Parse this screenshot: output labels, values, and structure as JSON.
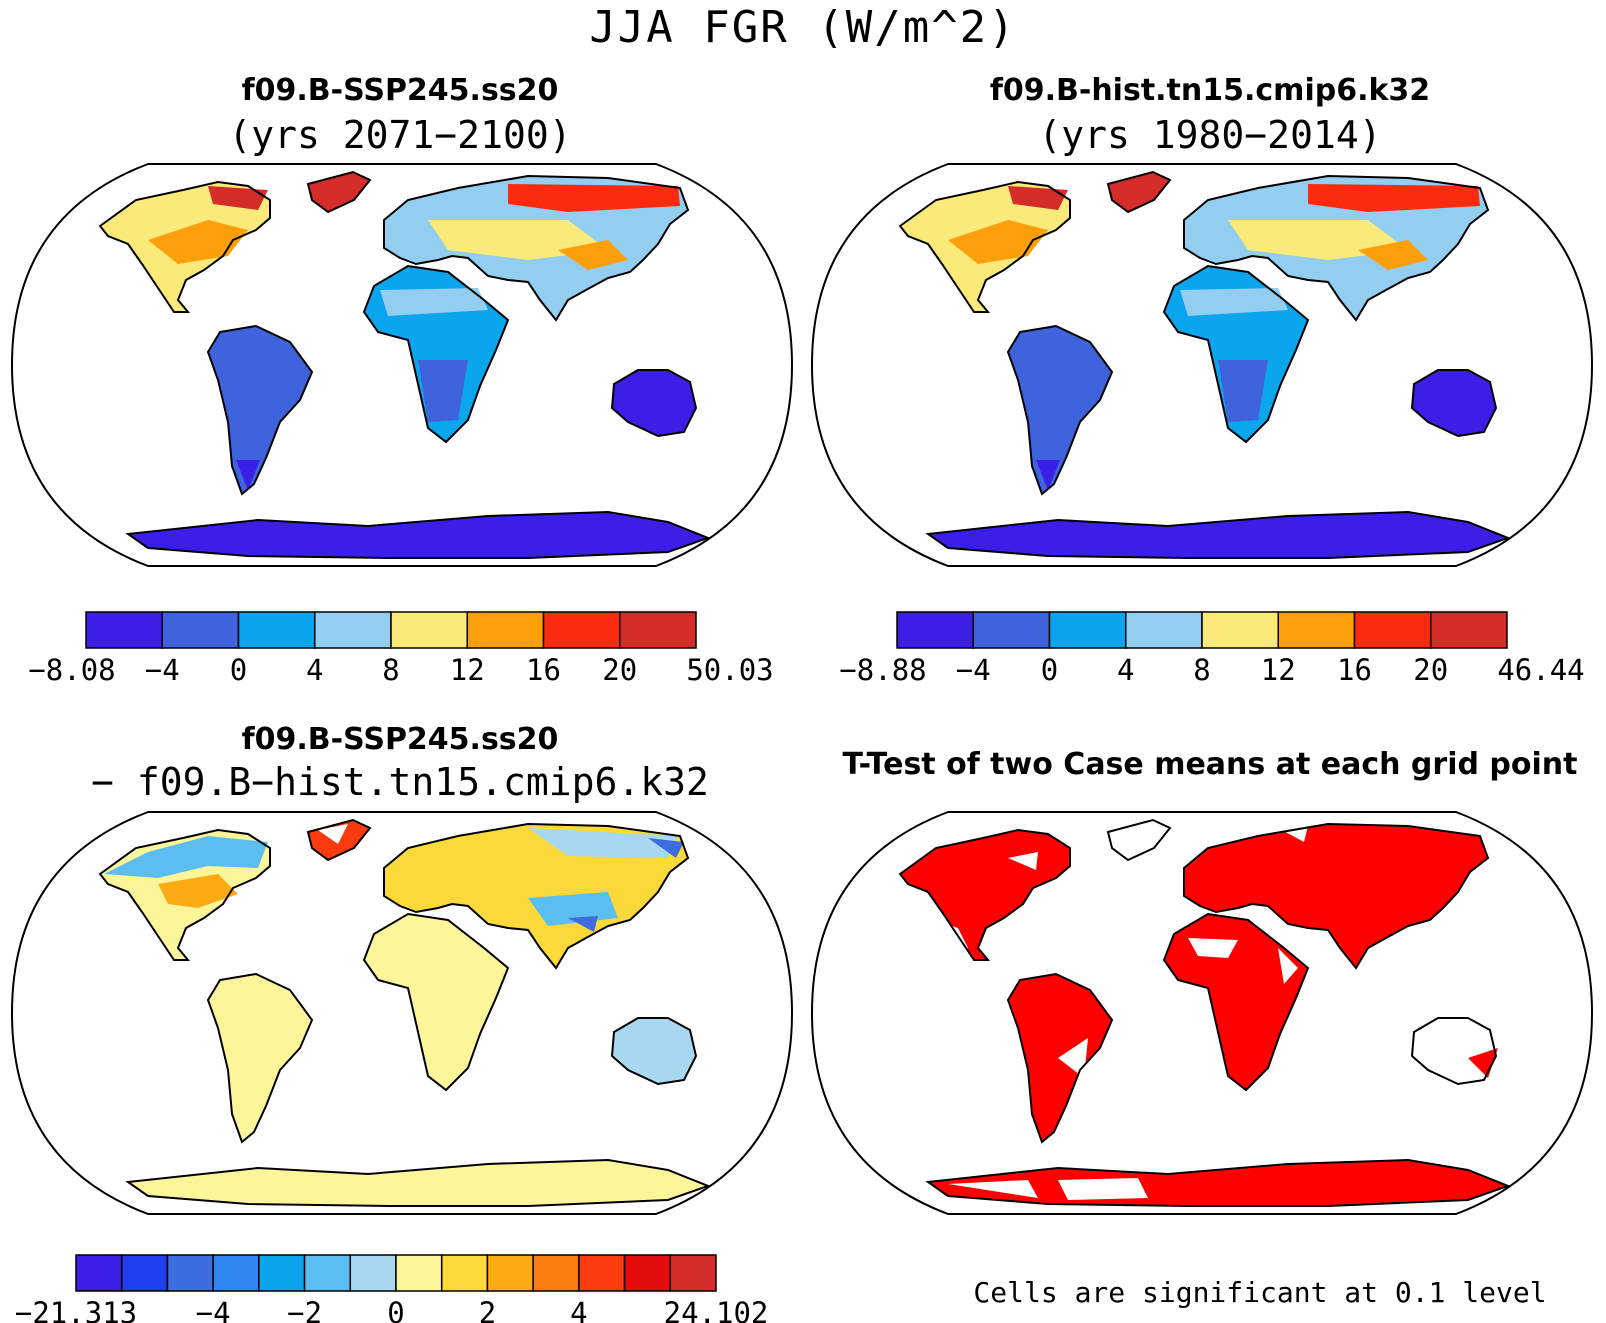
{
  "title": "JJA FGR (W/m^2)",
  "colors": {
    "ocean": "#ffffff",
    "outline": "#000000",
    "significant": "#ff0000"
  },
  "panels": [
    {
      "title": "f09.B-SSP245.ss20",
      "subtitle": "(yrs 2071−2100)",
      "field": "case",
      "colorbar": {
        "colors": [
          "#3b1fe6",
          "#3f63dd",
          "#0aa5ec",
          "#93cdef",
          "#fbe97a",
          "#fd9f0a",
          "#fc2b0f",
          "#d42c29"
        ],
        "labels": [
          "−8.08",
          "−4",
          "0",
          "4",
          "8",
          "12",
          "16",
          "20",
          "50.03"
        ]
      }
    },
    {
      "title": "f09.B-hist.tn15.cmip6.k32",
      "subtitle": "(yrs 1980−2014)",
      "field": "case",
      "colorbar": {
        "colors": [
          "#3b1fe6",
          "#3f63dd",
          "#0aa5ec",
          "#93cdef",
          "#fbe97a",
          "#fd9f0a",
          "#fc2b0f",
          "#d42c29"
        ],
        "labels": [
          "−8.88",
          "−4",
          "0",
          "4",
          "8",
          "12",
          "16",
          "20",
          "46.44"
        ]
      }
    },
    {
      "title": "f09.B-SSP245.ss20",
      "subtitle": "− f09.B−hist.tn15.cmip6.k32",
      "field": "diff",
      "colorbar": {
        "colors": [
          "#3b1fe6",
          "#1f3ff0",
          "#3d6ddf",
          "#2f86f0",
          "#0aa5ec",
          "#5cbef0",
          "#a8d8f0",
          "#fdf59a",
          "#fbd93a",
          "#fcab12",
          "#fb7a0f",
          "#fc3a0f",
          "#e40c0c",
          "#d42c29"
        ],
        "labels": [
          "−21.313",
          "−4",
          "−2",
          "0",
          "2",
          "4",
          "24.102"
        ]
      }
    },
    {
      "title": "T-Test of two Case means at each grid point",
      "field": "ttest",
      "note": "Cells are significant at 0.1 level"
    }
  ]
}
